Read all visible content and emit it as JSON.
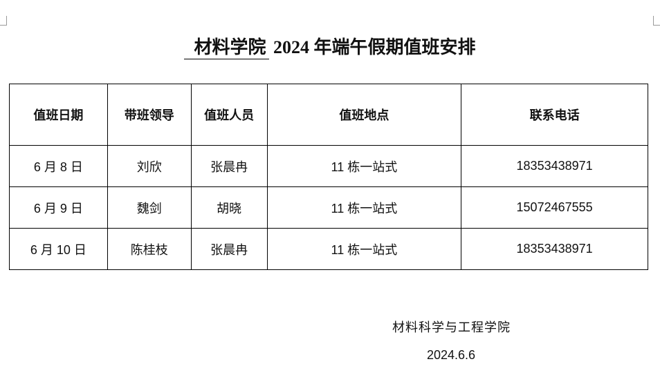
{
  "title": {
    "underlined": "材料学院",
    "rest": " 2024 年端午假期值班安排"
  },
  "table": {
    "headers": [
      "值班日期",
      "带班领导",
      "值班人员",
      "值班地点",
      "联系电话"
    ],
    "rows": [
      [
        "6 月 8 日",
        "刘欣",
        "张晨冉",
        "11 栋一站式",
        "18353438971"
      ],
      [
        "6 月 9 日",
        "魏剑",
        "胡晓",
        "11 栋一站式",
        "15072467555"
      ],
      [
        "6 月 10 日",
        "陈桂枝",
        "张晨冉",
        "11 栋一站式",
        "18353438971"
      ]
    ]
  },
  "signature": "材料科学与工程学院",
  "date": "2024.6.6"
}
